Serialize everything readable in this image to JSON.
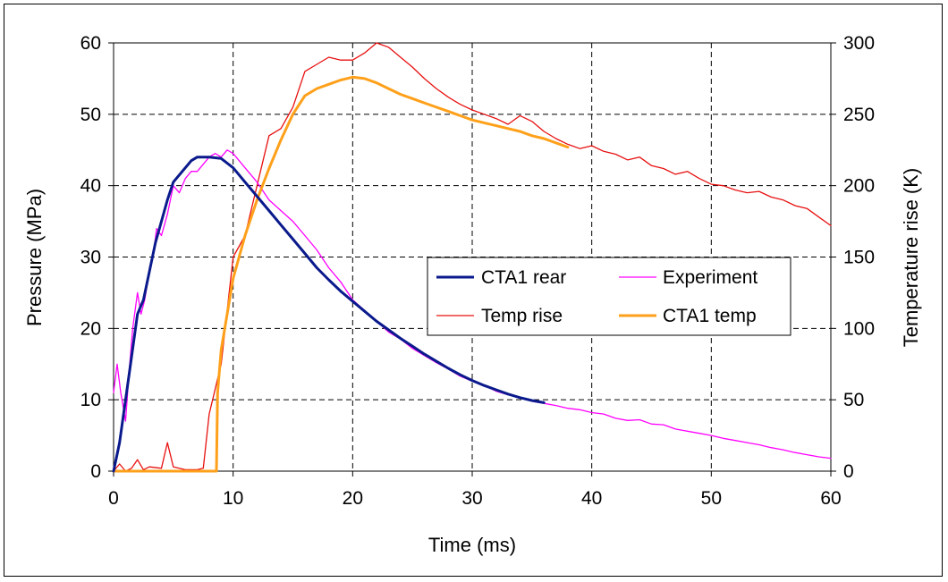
{
  "chart_data": {
    "type": "line",
    "xlabel": "Time (ms)",
    "ylabel_left": "Pressure (MPa)",
    "ylabel_right": "Temperature rise (K)",
    "xlim": [
      0,
      60
    ],
    "ylim_left": [
      0,
      60
    ],
    "ylim_right": [
      0,
      300
    ],
    "x_ticks": [
      0,
      10,
      20,
      30,
      40,
      50,
      60
    ],
    "y_left_ticks": [
      0,
      10,
      20,
      30,
      40,
      50,
      60
    ],
    "y_right_ticks": [
      0,
      50,
      100,
      150,
      200,
      250,
      300
    ],
    "grid": "dashed, major ticks",
    "legend_position": "center-right",
    "series": [
      {
        "name": "CTA1 rear",
        "axis": "left",
        "color": "#0a1a8c",
        "width": 3,
        "points": [
          [
            0,
            0
          ],
          [
            0.5,
            4
          ],
          [
            1,
            10
          ],
          [
            1.5,
            16
          ],
          [
            2,
            22
          ],
          [
            2.5,
            24
          ],
          [
            3,
            28
          ],
          [
            3.5,
            32
          ],
          [
            4,
            35
          ],
          [
            4.5,
            38
          ],
          [
            5,
            40.5
          ],
          [
            5.5,
            41.5
          ],
          [
            6,
            42.5
          ],
          [
            6.5,
            43.5
          ],
          [
            7,
            44
          ],
          [
            8,
            44
          ],
          [
            9,
            43.8
          ],
          [
            10,
            42.5
          ],
          [
            11,
            40.5
          ],
          [
            12,
            38.5
          ],
          [
            13,
            36.5
          ],
          [
            14,
            34.5
          ],
          [
            15,
            32.5
          ],
          [
            16,
            30.5
          ],
          [
            17,
            28.5
          ],
          [
            18,
            26.8
          ],
          [
            19,
            25.2
          ],
          [
            20,
            23.8
          ],
          [
            21,
            22.4
          ],
          [
            22,
            21
          ],
          [
            23,
            19.8
          ],
          [
            24,
            18.6
          ],
          [
            25,
            17.5
          ],
          [
            26,
            16.4
          ],
          [
            27,
            15.4
          ],
          [
            28,
            14.4
          ],
          [
            29,
            13.5
          ],
          [
            30,
            12.7
          ],
          [
            31,
            12
          ],
          [
            32,
            11.4
          ],
          [
            33,
            10.8
          ],
          [
            34,
            10.3
          ],
          [
            35,
            9.9
          ],
          [
            36,
            9.6
          ]
        ]
      },
      {
        "name": "Experiment",
        "axis": "left",
        "color": "#ff00ff",
        "width": 1.3,
        "points": [
          [
            0,
            11
          ],
          [
            0.3,
            15
          ],
          [
            0.6,
            11
          ],
          [
            1,
            7
          ],
          [
            1.3,
            14
          ],
          [
            1.6,
            20
          ],
          [
            2,
            25
          ],
          [
            2.3,
            22
          ],
          [
            2.6,
            24
          ],
          [
            3,
            28
          ],
          [
            3.3,
            30
          ],
          [
            3.6,
            34
          ],
          [
            4,
            33
          ],
          [
            4.5,
            36
          ],
          [
            5,
            40
          ],
          [
            5.5,
            39
          ],
          [
            6,
            41
          ],
          [
            6.5,
            42
          ],
          [
            7,
            42
          ],
          [
            7.5,
            43
          ],
          [
            8,
            44
          ],
          [
            8.5,
            44.5
          ],
          [
            9,
            44
          ],
          [
            9.5,
            45
          ],
          [
            10,
            44.5
          ],
          [
            11,
            42.5
          ],
          [
            12,
            40.5
          ],
          [
            13,
            38
          ],
          [
            14,
            36.5
          ],
          [
            15,
            35
          ],
          [
            16,
            33
          ],
          [
            17,
            31
          ],
          [
            18,
            28.5
          ],
          [
            19,
            26.5
          ],
          [
            20,
            24
          ],
          [
            21,
            22.5
          ],
          [
            22,
            21
          ],
          [
            23,
            19.5
          ],
          [
            24,
            18.5
          ],
          [
            25,
            17.2
          ],
          [
            26,
            16.2
          ],
          [
            27,
            15.2
          ],
          [
            28,
            14.3
          ],
          [
            29,
            13.3
          ],
          [
            30,
            12.6
          ],
          [
            31,
            12
          ],
          [
            32,
            11.2
          ],
          [
            33,
            10.7
          ],
          [
            34,
            10.3
          ],
          [
            35,
            9.8
          ],
          [
            36,
            9.5
          ],
          [
            37,
            9.2
          ],
          [
            38,
            8.8
          ],
          [
            39,
            8.6
          ],
          [
            40,
            8.2
          ],
          [
            41,
            8
          ],
          [
            42,
            7.4
          ],
          [
            43,
            7.1
          ],
          [
            44,
            7.2
          ],
          [
            45,
            6.6
          ],
          [
            46,
            6.5
          ],
          [
            47,
            5.9
          ],
          [
            48,
            5.6
          ],
          [
            49,
            5.3
          ],
          [
            50,
            5
          ],
          [
            51,
            4.6
          ],
          [
            52,
            4.3
          ],
          [
            53,
            4
          ],
          [
            54,
            3.7
          ],
          [
            55,
            3.3
          ],
          [
            56,
            3
          ],
          [
            57,
            2.6
          ],
          [
            58,
            2.3
          ],
          [
            59,
            2
          ],
          [
            60,
            1.8
          ]
        ]
      },
      {
        "name": "Temp rise",
        "axis": "right",
        "color": "#e81010",
        "width": 1.3,
        "points": [
          [
            0,
            0
          ],
          [
            0.5,
            5
          ],
          [
            1,
            0
          ],
          [
            1.5,
            2
          ],
          [
            2,
            8
          ],
          [
            2.5,
            1
          ],
          [
            3,
            3
          ],
          [
            4,
            2
          ],
          [
            4.5,
            20
          ],
          [
            5,
            3
          ],
          [
            6,
            1
          ],
          [
            7,
            1
          ],
          [
            7.5,
            2
          ],
          [
            8,
            40
          ],
          [
            9,
            75
          ],
          [
            10,
            150
          ],
          [
            11,
            165
          ],
          [
            12,
            200
          ],
          [
            13,
            235
          ],
          [
            14,
            240
          ],
          [
            15,
            255
          ],
          [
            16,
            280
          ],
          [
            17,
            285
          ],
          [
            18,
            290
          ],
          [
            19,
            288
          ],
          [
            20,
            288
          ],
          [
            21,
            293
          ],
          [
            22,
            300
          ],
          [
            23,
            297
          ],
          [
            24,
            290
          ],
          [
            25,
            283
          ],
          [
            26,
            275
          ],
          [
            27,
            268
          ],
          [
            28,
            262
          ],
          [
            29,
            257
          ],
          [
            30,
            253
          ],
          [
            31,
            250
          ],
          [
            32,
            247
          ],
          [
            33,
            243
          ],
          [
            34,
            249
          ],
          [
            35,
            245
          ],
          [
            36,
            238
          ],
          [
            37,
            233
          ],
          [
            38,
            229
          ],
          [
            39,
            226
          ],
          [
            40,
            228
          ],
          [
            41,
            224
          ],
          [
            42,
            222
          ],
          [
            43,
            218
          ],
          [
            44,
            220
          ],
          [
            45,
            214
          ],
          [
            46,
            212
          ],
          [
            47,
            208
          ],
          [
            48,
            210
          ],
          [
            49,
            205
          ],
          [
            50,
            201
          ],
          [
            51,
            200
          ],
          [
            52,
            197
          ],
          [
            53,
            195
          ],
          [
            54,
            196
          ],
          [
            55,
            192
          ],
          [
            56,
            190
          ],
          [
            57,
            186
          ],
          [
            58,
            184
          ],
          [
            59,
            178
          ],
          [
            60,
            172
          ]
        ]
      },
      {
        "name": "CTA1 temp",
        "axis": "right",
        "color": "#ffa01a",
        "width": 3,
        "points": [
          [
            0,
            0
          ],
          [
            8,
            0
          ],
          [
            8.6,
            0
          ],
          [
            8.7,
            55
          ],
          [
            9,
            85
          ],
          [
            10,
            135
          ],
          [
            11,
            165
          ],
          [
            12,
            190
          ],
          [
            13,
            212
          ],
          [
            14,
            232
          ],
          [
            15,
            250
          ],
          [
            16,
            263
          ],
          [
            17,
            268
          ],
          [
            18,
            271
          ],
          [
            19,
            274
          ],
          [
            20,
            276
          ],
          [
            21,
            275
          ],
          [
            22,
            272
          ],
          [
            23,
            268
          ],
          [
            24,
            264
          ],
          [
            25,
            261
          ],
          [
            26,
            258
          ],
          [
            27,
            255
          ],
          [
            28,
            252
          ],
          [
            29,
            249
          ],
          [
            30,
            246
          ],
          [
            31,
            244
          ],
          [
            32,
            242
          ],
          [
            33,
            240
          ],
          [
            34,
            238
          ],
          [
            35,
            235
          ],
          [
            36,
            233
          ],
          [
            37,
            230
          ],
          [
            38,
            227
          ]
        ]
      }
    ]
  }
}
